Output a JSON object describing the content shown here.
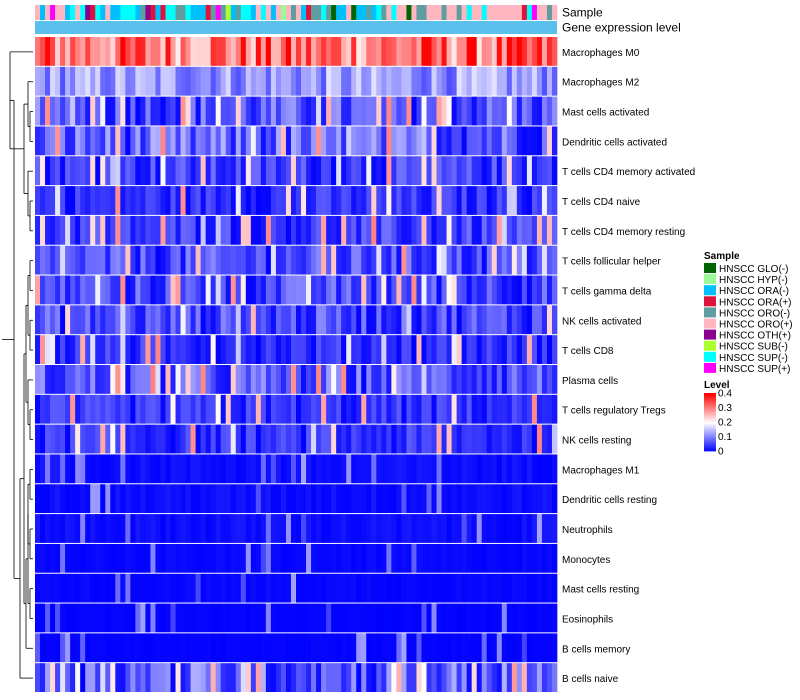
{
  "chart_data": {
    "type": "heatmap",
    "title": "",
    "annotation_tracks": [
      {
        "key": "sample",
        "label": "Sample"
      },
      {
        "key": "gene_level",
        "label": "Gene expression level"
      }
    ],
    "rows": [
      {
        "label": "Macrophages M0",
        "mean": 0.3
      },
      {
        "label": "Macrophages M2",
        "mean": 0.12
      },
      {
        "label": "Mast cells activated",
        "mean": 0.07
      },
      {
        "label": "Dendritic cells activated",
        "mean": 0.08
      },
      {
        "label": "T cells CD4 memory activated",
        "mean": 0.05
      },
      {
        "label": "T cells CD4 naive",
        "mean": 0.04
      },
      {
        "label": "T cells CD4 memory resting",
        "mean": 0.05
      },
      {
        "label": "T cells follicular helper",
        "mean": 0.06
      },
      {
        "label": "T cells gamma delta",
        "mean": 0.06
      },
      {
        "label": "NK cells activated",
        "mean": 0.06
      },
      {
        "label": "T cells CD8",
        "mean": 0.04
      },
      {
        "label": "Plasma cells",
        "mean": 0.07
      },
      {
        "label": "T cells regulatory  Tregs",
        "mean": 0.04
      },
      {
        "label": "NK cells resting",
        "mean": 0.04
      },
      {
        "label": "Macrophages M1",
        "mean": 0.02
      },
      {
        "label": "Dendritic cells resting",
        "mean": 0.02
      },
      {
        "label": "Neutrophils",
        "mean": 0.02
      },
      {
        "label": "Monocytes",
        "mean": 0.01
      },
      {
        "label": "Mast cells resting",
        "mean": 0.01
      },
      {
        "label": "Eosinophils",
        "mean": 0.005
      },
      {
        "label": "B cells memory",
        "mean": 0.005
      },
      {
        "label": "B cells naive",
        "mean": 0.08
      }
    ],
    "n_samples": 104,
    "color_scale": {
      "title": "Level",
      "stops": [
        {
          "value": 0,
          "color": "#0000ff"
        },
        {
          "value": 0.2,
          "color": "#ffffff"
        },
        {
          "value": 0.4,
          "color": "#ff0000"
        }
      ],
      "ticks": [
        {
          "value": 0.4,
          "label": "0.4"
        },
        {
          "value": 0.3,
          "label": "0.3"
        },
        {
          "value": 0.2,
          "label": "0.2"
        },
        {
          "value": 0.1,
          "label": "0.1"
        },
        {
          "value": 0,
          "label": "0"
        }
      ]
    },
    "sample_legend": {
      "title": "Sample",
      "entries": [
        {
          "label": "HNSCC GLO(-)",
          "color": "#006400"
        },
        {
          "label": "HNSCC HYP(-)",
          "color": "#98fb98"
        },
        {
          "label": "HNSCC ORA(-)",
          "color": "#00bfff"
        },
        {
          "label": "HNSCC ORA(+)",
          "color": "#dc143c"
        },
        {
          "label": "HNSCC ORO(-)",
          "color": "#5f9ea0"
        },
        {
          "label": "HNSCC ORO(+)",
          "color": "#ffb6c1"
        },
        {
          "label": "HNSCC OTH(+)",
          "color": "#8b008b"
        },
        {
          "label": "HNSCC SUB(-)",
          "color": "#adff2f"
        },
        {
          "label": "HNSCC SUP(-)",
          "color": "#00ffff"
        },
        {
          "label": "HNSCC SUP(+)",
          "color": "#ff00ff"
        }
      ]
    },
    "gene_level_color": "#5bc0eb"
  }
}
